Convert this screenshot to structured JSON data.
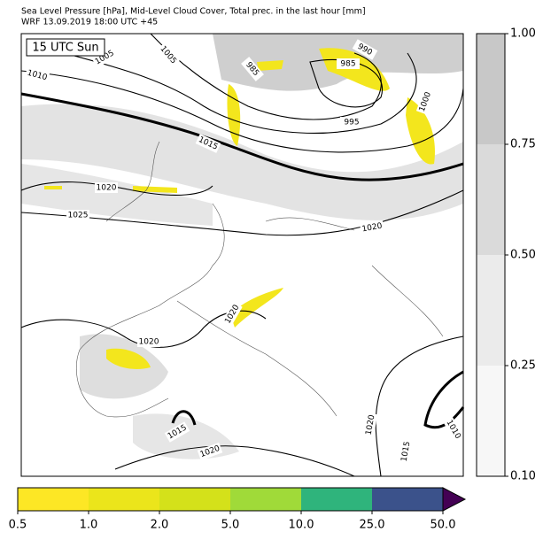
{
  "header": {
    "title": "Sea Level Pressure [hPa], Mid-Level Cloud Cover, Total prec. in the last hour [mm]",
    "subtitle": "WRF 13.09.2019 18:00 UTC +45"
  },
  "map": {
    "time_label": "15 UTC Sun",
    "isobar_labels": [
      1005,
      1005,
      1010,
      985,
      990,
      985,
      995,
      1000,
      1015,
      1020,
      1025,
      1020,
      1020,
      1020,
      1015,
      1020,
      1020,
      1015,
      1010
    ]
  },
  "cloud_colorbar": {
    "ticks": [
      {
        "value": 0.1,
        "label": "0.10"
      },
      {
        "value": 0.25,
        "label": "0.25"
      },
      {
        "value": 0.5,
        "label": "0.50"
      },
      {
        "value": 0.75,
        "label": "0.75"
      },
      {
        "value": 1,
        "label": "1.00"
      }
    ],
    "colors": [
      "#f7f7f7",
      "#ebebeb",
      "#dadada",
      "#c8c8c8"
    ]
  },
  "precip_colorbar": {
    "ticks": [
      0.5,
      {
        "value": 1,
        "label": "1.0"
      },
      {
        "value": 2,
        "label": "2.0"
      },
      {
        "value": 5,
        "label": "5.0"
      },
      {
        "value": 10,
        "label": "10.0"
      },
      {
        "value": 25,
        "label": "25.0"
      },
      {
        "value": 50,
        "label": "50.0"
      }
    ],
    "colors": [
      "#fde725",
      "#ebe51b",
      "#d4e11a",
      "#a0da39",
      "#2fb47c",
      "#3b528b"
    ],
    "extend_color": "#440154"
  }
}
